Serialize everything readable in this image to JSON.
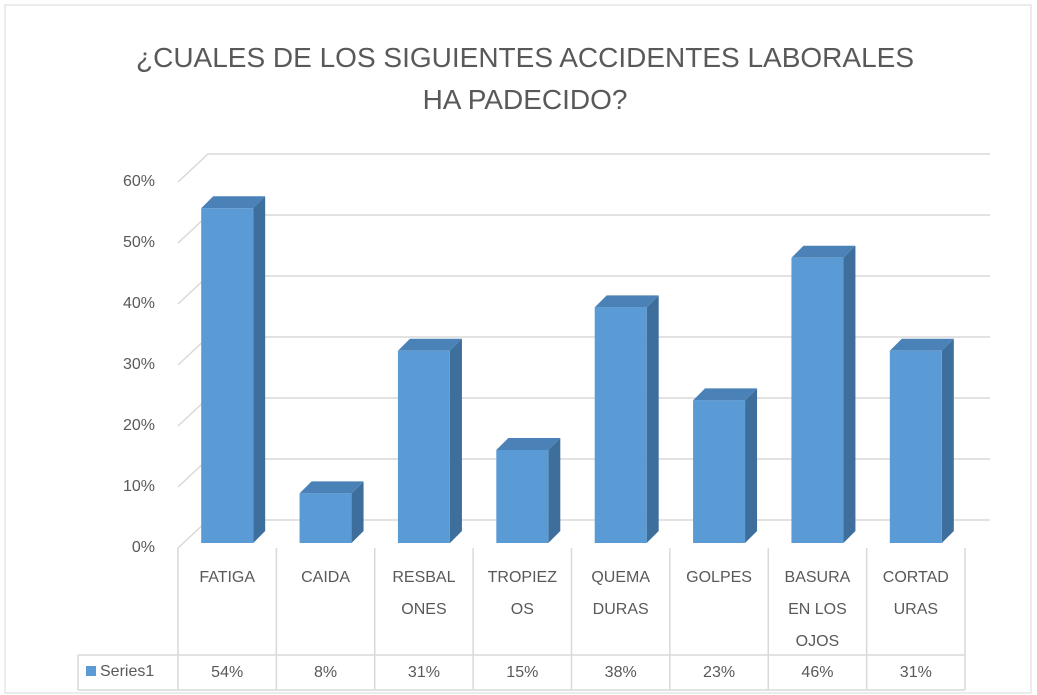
{
  "chart_data": {
    "type": "bar3d",
    "title": "¿CUALES DE LOS SIGUIENTES ACCIDENTES LABORALES HA PADECIDO?",
    "categories": [
      "FATIGA",
      "CAIDA",
      "RESBAL ONES",
      "TROPIEZ OS",
      "QUEMA DURAS",
      "GOLPES",
      "BASURA EN LOS OJOS",
      "CORTAD URAS"
    ],
    "series": [
      {
        "name": "Series1",
        "color": "#5b9bd5",
        "values": [
          54,
          8,
          31,
          15,
          38,
          23,
          46,
          31
        ],
        "value_labels": [
          "54%",
          "8%",
          "31%",
          "15%",
          "38%",
          "23%",
          "46%",
          "31%"
        ]
      }
    ],
    "ylim": [
      0,
      60
    ],
    "yticks": [
      {
        "value": 0,
        "label": "0%"
      },
      {
        "value": 10,
        "label": "10%"
      },
      {
        "value": 20,
        "label": "20%"
      },
      {
        "value": 30,
        "label": "30%"
      },
      {
        "value": 40,
        "label": "40%"
      },
      {
        "value": 50,
        "label": "50%"
      },
      {
        "value": 60,
        "label": "60%"
      }
    ],
    "grid": true,
    "data_table": true
  }
}
